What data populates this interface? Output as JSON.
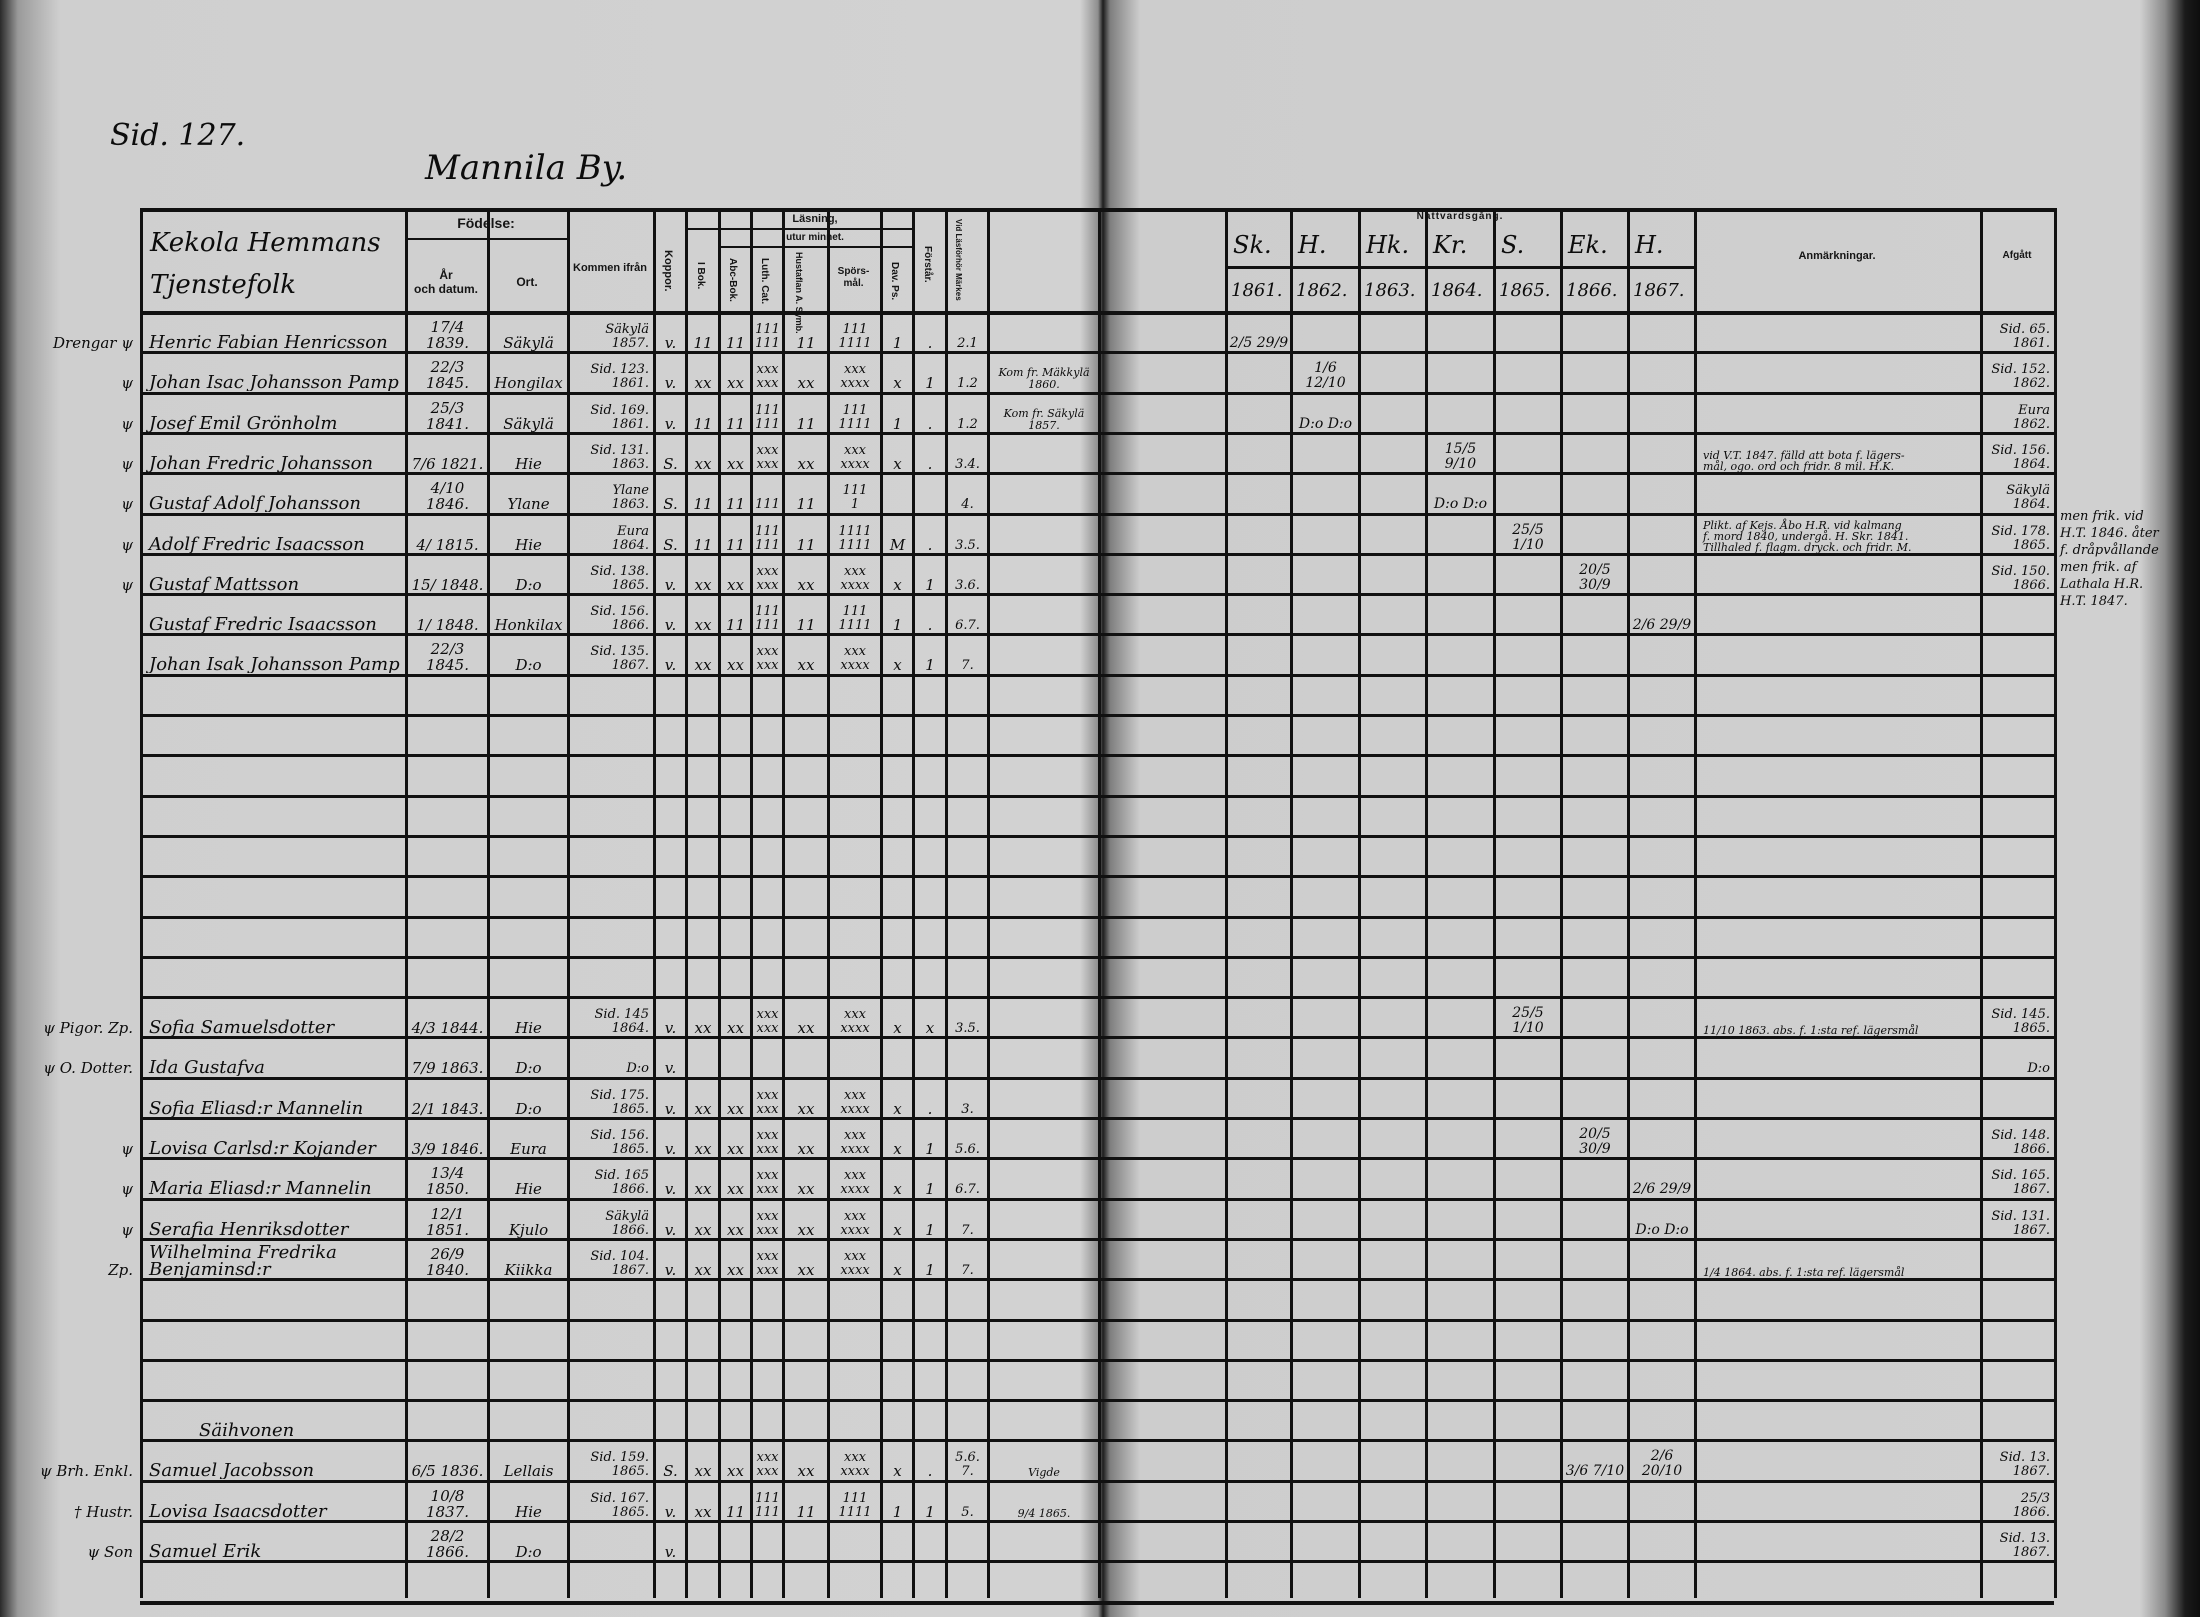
{
  "page_ref": "Sid. 127.",
  "village": "Mannila By.",
  "header": {
    "name_col": "Kekola Hemmans\nTjenstefolk",
    "birth": "Födelse:",
    "birth_date": "År\noch datum.",
    "birth_place": "Ort.",
    "came_from": "Kommen ifrån",
    "smallpox": "Koppor.",
    "reading": "Läsning,",
    "by_heart": "utur minnet.",
    "in_book": "I Bok.",
    "abc_book": "Abc-Bok.",
    "luth_cat": "Luth. Cat.",
    "hustaflan": "Hustaflan A. Symb.",
    "questions": "Spörs-\nmål.",
    "psalms": "Dav. Ps.",
    "understands": "Förstår.",
    "examination": "Vid Läsförhör Märkes",
    "communion": "Nattvardsgång.",
    "priests": [
      "Sk.",
      "H.",
      "Hk.",
      "Kr.",
      "S.",
      "Ek.",
      "H."
    ],
    "years": [
      "1861.",
      "1862.",
      "1863.",
      "1864.",
      "1865.",
      "1866.",
      "1867."
    ],
    "remarks": "Anmärkningar.",
    "departed": "Afgått"
  },
  "section_heading": "Säihvonen",
  "rows": [
    {
      "prefix": "Drengar ψ",
      "name": "Henric Fabian Henricsson",
      "born": "17/4 1839.",
      "place": "Säkylä",
      "from": "Säkylä\n1857.",
      "koppor": "v.",
      "ibok": "11",
      "abc": "11",
      "luth": "111\n111",
      "hust": "11",
      "spors": "111\n1111",
      "dav": "1",
      "forst": ".",
      "lasf": "2.1",
      "note": "",
      "communion": [
        "2/5 29/9",
        "",
        "",
        "",
        "",
        "",
        ""
      ],
      "remarks": "",
      "departed": "Sid. 65.\n1861."
    },
    {
      "prefix": "ψ",
      "name": "Johan Isac Johansson Pamp",
      "born": "22/3 1845.",
      "place": "Hongilax",
      "from": "Sid. 123.\n1861.",
      "koppor": "v.",
      "ibok": "xx",
      "abc": "xx",
      "luth": "xxx\nxxx",
      "hust": "xx",
      "spors": "xxx\nxxxx",
      "dav": "x",
      "forst": "1",
      "lasf": "1.2",
      "note": "Kom fr. Mäkkylä\n1860.",
      "communion": [
        "",
        "1/6 12/10",
        "",
        "",
        "",
        "",
        ""
      ],
      "remarks": "",
      "departed": "Sid. 152.\n1862."
    },
    {
      "prefix": "ψ",
      "name": "Josef Emil Grönholm",
      "born": "25/3 1841.",
      "place": "Säkylä",
      "from": "Sid. 169.\n1861.",
      "koppor": "v.",
      "ibok": "11",
      "abc": "11",
      "luth": "111\n111",
      "hust": "11",
      "spors": "111\n1111",
      "dav": "1",
      "forst": ".",
      "lasf": "1.2",
      "note": "Kom fr. Säkylä\n1857.",
      "communion": [
        "",
        "D:o D:o",
        "",
        "",
        "",
        "",
        ""
      ],
      "remarks": "",
      "departed": "Eura\n1862."
    },
    {
      "prefix": "ψ",
      "name": "Johan Fredric Johansson",
      "born": "7/6 1821.",
      "place": "Hie",
      "from": "Sid. 131.\n1863.",
      "koppor": "S.",
      "ibok": "xx",
      "abc": "xx",
      "luth": "xxx\nxxx",
      "hust": "xx",
      "spors": "xxx\nxxxx",
      "dav": "x",
      "forst": ".",
      "lasf": "3.4.",
      "note": "",
      "communion": [
        "",
        "",
        "",
        "15/5 9/10",
        "",
        "",
        ""
      ],
      "remarks": "vid V.T. 1847. fälld att bota f. lägers-\nmål, ogo. ord och fridr. 8 mil. H.K.",
      "departed": "Sid. 156.\n1864."
    },
    {
      "prefix": "ψ",
      "name": "Gustaf Adolf Johansson",
      "born": "4/10 1846.",
      "place": "Ylane",
      "from": "Ylane\n1863.",
      "koppor": "S.",
      "ibok": "11",
      "abc": "11",
      "luth": "111",
      "hust": "11",
      "spors": "111\n1",
      "dav": "",
      "forst": "",
      "lasf": "4.",
      "note": "",
      "communion": [
        "",
        "",
        "",
        "D:o D:o",
        "",
        "",
        ""
      ],
      "remarks": "",
      "departed": "Säkylä\n1864."
    },
    {
      "prefix": "ψ",
      "name": "Adolf Fredric Isaacsson",
      "born": "4/ 1815.",
      "place": "Hie",
      "from": "Eura\n1864.",
      "koppor": "S.",
      "ibok": "11",
      "abc": "11",
      "luth": "111\n111",
      "hust": "11",
      "spors": "1111\n1111",
      "dav": "M",
      "forst": ".",
      "lasf": "3.5.",
      "note": "",
      "communion": [
        "",
        "",
        "",
        "",
        "25/5 1/10",
        "",
        ""
      ],
      "remarks": "Plikt. af Kejs. Åbo H.R. vid kalmang\nf. mord 1840, undergå. H. Skr. 1841.\nTillhaled f. flagm. dryck. och fridr. M.",
      "departed": "Sid. 178.\n1865.",
      "margin_note": "men frik. vid\nH.T. 1846. åter\nf. dråpvållande\nmen frik. af\nLathala H.R.\nH.T. 1847."
    },
    {
      "prefix": "ψ",
      "name": "Gustaf Mattsson",
      "born": "15/ 1848.",
      "place": "D:o",
      "from": "Sid. 138.\n1865.",
      "koppor": "v.",
      "ibok": "xx",
      "abc": "xx",
      "luth": "xxx\nxxx",
      "hust": "xx",
      "spors": "xxx\nxxxx",
      "dav": "x",
      "forst": "1",
      "lasf": "3.6.",
      "note": "",
      "communion": [
        "",
        "",
        "",
        "",
        "",
        "20/5 30/9",
        ""
      ],
      "remarks": "",
      "departed": "Sid. 150.\n1866."
    },
    {
      "prefix": "",
      "name": "Gustaf Fredric Isaacsson",
      "born": "1/ 1848.",
      "place": "Honkilax",
      "from": "Sid. 156.\n1866.",
      "koppor": "v.",
      "ibok": "xx",
      "abc": "11",
      "luth": "111\n111",
      "hust": "11",
      "spors": "111\n1111",
      "dav": "1",
      "forst": ".",
      "lasf": "6.7.",
      "note": "",
      "communion": [
        "",
        "",
        "",
        "",
        "",
        "",
        "2/6 29/9"
      ],
      "remarks": "",
      "departed": ""
    },
    {
      "prefix": "",
      "name": "Johan Isak Johansson Pamp",
      "born": "22/3 1845.",
      "place": "D:o",
      "from": "Sid. 135.\n1867.",
      "koppor": "v.",
      "ibok": "xx",
      "abc": "xx",
      "luth": "xxx\nxxx",
      "hust": "xx",
      "spors": "xxx\nxxxx",
      "dav": "x",
      "forst": "1",
      "lasf": "7.",
      "note": "",
      "communion": [
        "",
        "",
        "",
        "",
        "",
        "",
        ""
      ],
      "remarks": "",
      "departed": ""
    },
    {},
    {},
    {},
    {},
    {},
    {},
    {},
    {},
    {
      "prefix": "ψ Pigor. Zp.",
      "name": "Sofia Samuelsdotter",
      "born": "4/3 1844.",
      "place": "Hie",
      "from": "Sid. 145\n1864.",
      "koppor": "v.",
      "ibok": "xx",
      "abc": "xx",
      "luth": "xxx\nxxx",
      "hust": "xx",
      "spors": "xxx\nxxxx",
      "dav": "x",
      "forst": "x",
      "lasf": "3.5.",
      "note": "",
      "communion": [
        "",
        "",
        "",
        "",
        "25/5 1/10",
        "",
        ""
      ],
      "remarks": "11/10 1863. abs. f. 1:sta ref. lägersmål",
      "departed": "Sid. 145.\n1865."
    },
    {
      "prefix": "ψ O. Dotter.",
      "name": "Ida Gustafva",
      "born": "7/9 1863.",
      "place": "D:o",
      "from": "D:o",
      "koppor": "v.",
      "ibok": "",
      "abc": "",
      "luth": "",
      "hust": "",
      "spors": "",
      "dav": "",
      "forst": "",
      "lasf": "",
      "note": "",
      "communion": [
        "",
        "",
        "",
        "",
        "",
        "",
        ""
      ],
      "remarks": "",
      "departed": "D:o"
    },
    {
      "prefix": "",
      "name": "Sofia Eliasd:r Mannelin",
      "born": "2/1 1843.",
      "place": "D:o",
      "from": "Sid. 175.\n1865.",
      "koppor": "v.",
      "ibok": "xx",
      "abc": "xx",
      "luth": "xxx\nxxx",
      "hust": "xx",
      "spors": "xxx\nxxxx",
      "dav": "x",
      "forst": ".",
      "lasf": "3.",
      "note": "",
      "communion": [
        "",
        "",
        "",
        "",
        "",
        "",
        ""
      ],
      "remarks": "",
      "departed": ""
    },
    {
      "prefix": "ψ",
      "name": "Lovisa Carlsd:r Kojander",
      "born": "3/9 1846.",
      "place": "Eura",
      "from": "Sid. 156.\n1865.",
      "koppor": "v.",
      "ibok": "xx",
      "abc": "xx",
      "luth": "xxx\nxxx",
      "hust": "xx",
      "spors": "xxx\nxxxx",
      "dav": "x",
      "forst": "1",
      "lasf": "5.6.",
      "note": "",
      "communion": [
        "",
        "",
        "",
        "",
        "",
        "20/5 30/9",
        ""
      ],
      "remarks": "",
      "departed": "Sid. 148.\n1866."
    },
    {
      "prefix": "ψ",
      "name": "Maria Eliasd:r Mannelin",
      "born": "13/4 1850.",
      "place": "Hie",
      "from": "Sid. 165\n1866.",
      "koppor": "v.",
      "ibok": "xx",
      "abc": "xx",
      "luth": "xxx\nxxx",
      "hust": "xx",
      "spors": "xxx\nxxxx",
      "dav": "x",
      "forst": "1",
      "lasf": "6.7.",
      "note": "",
      "communion": [
        "",
        "",
        "",
        "",
        "",
        "",
        "2/6 29/9"
      ],
      "remarks": "",
      "departed": "Sid. 165.\n1867."
    },
    {
      "prefix": "ψ",
      "name": "Serafia Henriksdotter",
      "born": "12/1 1851.",
      "place": "Kjulo",
      "from": "Säkylä\n1866.",
      "koppor": "v.",
      "ibok": "xx",
      "abc": "xx",
      "luth": "xxx\nxxx",
      "hust": "xx",
      "spors": "xxx\nxxxx",
      "dav": "x",
      "forst": "1",
      "lasf": "7.",
      "note": "",
      "communion": [
        "",
        "",
        "",
        "",
        "",
        "",
        "D:o D:o"
      ],
      "remarks": "",
      "departed": "Sid. 131.\n1867."
    },
    {
      "prefix": "Zp.",
      "name": "Wilhelmina Fredrika Benjaminsd:r",
      "born": "26/9 1840.",
      "place": "Kiikka",
      "from": "Sid. 104.\n1867.",
      "koppor": "v.",
      "ibok": "xx",
      "abc": "xx",
      "luth": "xxx\nxxx",
      "hust": "xx",
      "spors": "xxx\nxxxx",
      "dav": "x",
      "forst": "1",
      "lasf": "7.",
      "note": "",
      "communion": [
        "",
        "",
        "",
        "",
        "",
        "",
        ""
      ],
      "remarks": "1/4 1864. abs. f. 1:sta ref. lägersmål",
      "departed": ""
    },
    {},
    {},
    {},
    {
      "heading": true
    },
    {
      "prefix": "ψ Brh. Enkl.",
      "name": "Samuel Jacobsson",
      "born": "6/5 1836.",
      "place": "Lellais",
      "from": "Sid. 159.\n1865.",
      "koppor": "S.",
      "ibok": "xx",
      "abc": "xx",
      "luth": "xxx\nxxx",
      "hust": "xx",
      "spors": "xxx\nxxxx",
      "dav": "x",
      "forst": ".",
      "lasf": "5.6.\n7.",
      "note": "Vigde",
      "communion": [
        "",
        "",
        "",
        "",
        "",
        "3/6 7/10",
        "2/6 20/10"
      ],
      "remarks": "",
      "departed": "Sid. 13.\n1867."
    },
    {
      "prefix": "† Hustr.",
      "name": "Lovisa Isaacsdotter",
      "born": "10/8 1837.",
      "place": "Hie",
      "from": "Sid. 167.\n1865.",
      "koppor": "v.",
      "ibok": "xx",
      "abc": "11",
      "luth": "111\n111",
      "hust": "11",
      "spors": "111\n1111",
      "dav": "1",
      "forst": "1",
      "lasf": "5.",
      "note": "9/4 1865.",
      "communion": [
        "",
        "",
        "",
        "",
        "",
        "",
        ""
      ],
      "remarks": "",
      "departed": "25/3 1866."
    },
    {
      "prefix": "ψ Son",
      "name": "Samuel Erik",
      "born": "28/2 1866.",
      "place": "D:o",
      "from": "",
      "koppor": "v.",
      "ibok": "",
      "abc": "",
      "luth": "",
      "hust": "",
      "spors": "",
      "dav": "",
      "forst": "",
      "lasf": "",
      "note": "",
      "communion": [
        "",
        "",
        "",
        "",
        "",
        "",
        ""
      ],
      "remarks": "",
      "departed": "Sid. 13.\n1867."
    },
    {}
  ]
}
